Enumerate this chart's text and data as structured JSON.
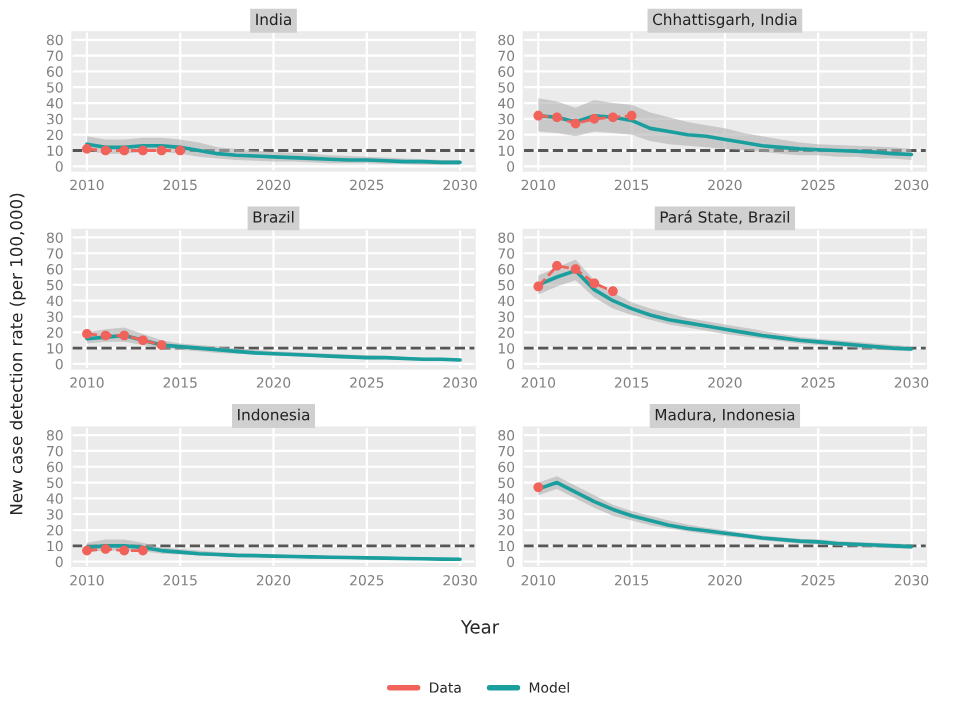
{
  "chart_data": [
    {
      "type": "line",
      "title": "India",
      "legend": "bottom",
      "grid": true,
      "xlim": [
        2009.2,
        2030.8
      ],
      "xticks": [
        2010,
        2015,
        2020,
        2025,
        2030
      ],
      "ylim": [
        -3,
        85
      ],
      "yticks": [
        0,
        10,
        20,
        30,
        40,
        50,
        60,
        70,
        80
      ],
      "ref_lines": [
        {
          "axis": "y",
          "value": 10,
          "color": "#555555",
          "line_style": "dashed"
        }
      ],
      "x": [
        2010,
        2011,
        2012,
        2013,
        2014,
        2015,
        2016,
        2017,
        2018,
        2019,
        2020,
        2021,
        2022,
        2023,
        2024,
        2025,
        2026,
        2027,
        2028,
        2029,
        2030
      ],
      "series": [
        {
          "name": "Data",
          "color": "#f0625a",
          "marker": "circle",
          "line_style": "dashed",
          "x": [
            2010,
            2011,
            2012,
            2013,
            2014,
            2015
          ],
          "values": [
            11,
            10,
            10,
            10,
            10,
            10
          ]
        },
        {
          "name": "Model",
          "color": "#1a9e9e",
          "marker": "none",
          "line_style": "solid",
          "values": [
            14,
            12,
            12,
            13,
            13,
            12,
            10,
            8,
            7,
            6.5,
            6,
            5.5,
            5,
            4.5,
            4,
            4,
            3.5,
            3,
            3,
            2.5,
            2.5
          ],
          "lower": [
            10,
            8,
            8,
            9,
            9,
            8,
            6,
            5,
            4,
            3.5,
            3,
            3,
            2.5,
            2,
            2,
            2,
            1.5,
            1.5,
            1,
            1,
            1
          ],
          "upper": [
            19,
            17,
            17,
            18,
            18,
            17,
            15,
            12,
            11,
            10,
            9,
            8.5,
            8,
            7,
            6.5,
            6,
            5.5,
            5,
            4.5,
            4,
            4
          ]
        }
      ]
    },
    {
      "type": "line",
      "title": "Chhattisgarh, India",
      "grid": true,
      "xlim": [
        2009.2,
        2030.8
      ],
      "xticks": [
        2010,
        2015,
        2020,
        2025,
        2030
      ],
      "ylim": [
        -3,
        85
      ],
      "yticks": [
        0,
        10,
        20,
        30,
        40,
        50,
        60,
        70,
        80
      ],
      "ref_lines": [
        {
          "axis": "y",
          "value": 10,
          "color": "#555555",
          "line_style": "dashed"
        }
      ],
      "x": [
        2010,
        2011,
        2012,
        2013,
        2014,
        2015,
        2016,
        2017,
        2018,
        2019,
        2020,
        2021,
        2022,
        2023,
        2024,
        2025,
        2026,
        2027,
        2028,
        2029,
        2030
      ],
      "series": [
        {
          "color": "#f0625a",
          "marker": "circle",
          "line_style": "dashed",
          "x": [
            2010,
            2011,
            2012,
            2013,
            2014,
            2015
          ],
          "values": [
            32,
            31,
            27,
            30,
            31,
            32
          ]
        },
        {
          "color": "#1a9e9e",
          "marker": "none",
          "line_style": "solid",
          "values": [
            32,
            31,
            28,
            32,
            31,
            29,
            24,
            22,
            20,
            19,
            17,
            15,
            13,
            12,
            11,
            10.5,
            10,
            9.5,
            9,
            8,
            7.5
          ],
          "lower": [
            22,
            21,
            19,
            22,
            21,
            20,
            16,
            14,
            13,
            12,
            11,
            10,
            9,
            8,
            7,
            7,
            6,
            6,
            5,
            5,
            4
          ],
          "upper": [
            43,
            41,
            37,
            42,
            40,
            39,
            34,
            31,
            28,
            26,
            24,
            21,
            19,
            17,
            15,
            14,
            13.5,
            13,
            12.5,
            12,
            11
          ]
        }
      ]
    },
    {
      "type": "line",
      "title": "Brazil",
      "ylabel": "New case detection rate (per 100,000)",
      "grid": true,
      "xlim": [
        2009.2,
        2030.8
      ],
      "xticks": [
        2010,
        2015,
        2020,
        2025,
        2030
      ],
      "ylim": [
        -3,
        85
      ],
      "yticks": [
        0,
        10,
        20,
        30,
        40,
        50,
        60,
        70,
        80
      ],
      "ref_lines": [
        {
          "axis": "y",
          "value": 10,
          "color": "#555555",
          "line_style": "dashed"
        }
      ],
      "x": [
        2010,
        2011,
        2012,
        2013,
        2014,
        2015,
        2016,
        2017,
        2018,
        2019,
        2020,
        2021,
        2022,
        2023,
        2024,
        2025,
        2026,
        2027,
        2028,
        2029,
        2030
      ],
      "series": [
        {
          "color": "#f0625a",
          "marker": "circle",
          "line_style": "dashed",
          "x": [
            2010,
            2011,
            2012,
            2013,
            2014
          ],
          "values": [
            19,
            18,
            18,
            15,
            12
          ]
        },
        {
          "color": "#1a9e9e",
          "marker": "none",
          "line_style": "solid",
          "values": [
            16,
            17,
            18,
            15,
            12,
            11,
            10,
            9,
            8,
            7,
            6.5,
            6,
            5.5,
            5,
            4.5,
            4,
            4,
            3.5,
            3,
            3,
            2.5
          ],
          "lower": [
            13,
            14,
            14,
            12,
            10,
            9,
            8,
            7,
            6.5,
            6,
            5.5,
            5,
            4.5,
            4,
            3.5,
            3,
            3,
            2.5,
            2.5,
            2,
            2
          ],
          "upper": [
            20,
            22,
            23,
            19,
            15,
            13,
            12,
            11,
            10,
            9,
            8,
            7.5,
            7,
            6.5,
            6,
            5.5,
            5,
            4.5,
            4,
            3.5,
            3
          ]
        }
      ]
    },
    {
      "type": "line",
      "title": "Pará State, Brazil",
      "grid": true,
      "xlim": [
        2009.2,
        2030.8
      ],
      "xticks": [
        2010,
        2015,
        2020,
        2025,
        2030
      ],
      "ylim": [
        -3,
        85
      ],
      "yticks": [
        0,
        10,
        20,
        30,
        40,
        50,
        60,
        70,
        80
      ],
      "ref_lines": [
        {
          "axis": "y",
          "value": 10,
          "color": "#555555",
          "line_style": "dashed"
        }
      ],
      "x": [
        2010,
        2011,
        2012,
        2013,
        2014,
        2015,
        2016,
        2017,
        2018,
        2019,
        2020,
        2021,
        2022,
        2023,
        2024,
        2025,
        2026,
        2027,
        2028,
        2029,
        2030
      ],
      "series": [
        {
          "color": "#f0625a",
          "marker": "circle",
          "line_style": "dashed",
          "x": [
            2010,
            2011,
            2012,
            2013,
            2014
          ],
          "values": [
            49,
            62,
            60,
            51,
            46
          ]
        },
        {
          "color": "#1a9e9e",
          "marker": "none",
          "line_style": "solid",
          "values": [
            50,
            55,
            59,
            47,
            40,
            35,
            31,
            28,
            26,
            24,
            22,
            20,
            18,
            16.5,
            15,
            14,
            13,
            12,
            11,
            10,
            9.5
          ],
          "lower": [
            44,
            49,
            53,
            42,
            35,
            31,
            28,
            25,
            23,
            21,
            19,
            17.5,
            16,
            14.5,
            13,
            12,
            11,
            10,
            9,
            8.5,
            8
          ],
          "upper": [
            56,
            61,
            66,
            53,
            45,
            39,
            35,
            32,
            29,
            27,
            25,
            23,
            21,
            19,
            17,
            16,
            15,
            14,
            13,
            12,
            11
          ]
        }
      ]
    },
    {
      "type": "line",
      "title": "Indonesia",
      "grid": true,
      "xlim": [
        2009.2,
        2030.8
      ],
      "xticks": [
        2010,
        2015,
        2020,
        2025,
        2030
      ],
      "ylim": [
        -3,
        85
      ],
      "yticks": [
        0,
        10,
        20,
        30,
        40,
        50,
        60,
        70,
        80
      ],
      "ref_lines": [
        {
          "axis": "y",
          "value": 10,
          "color": "#555555",
          "line_style": "dashed"
        }
      ],
      "x": [
        2010,
        2011,
        2012,
        2013,
        2014,
        2015,
        2016,
        2017,
        2018,
        2019,
        2020,
        2021,
        2022,
        2023,
        2024,
        2025,
        2026,
        2027,
        2028,
        2029,
        2030
      ],
      "series": [
        {
          "color": "#f0625a",
          "marker": "circle",
          "line_style": "dashed",
          "x": [
            2010,
            2011,
            2012,
            2013
          ],
          "values": [
            7,
            8,
            7,
            7
          ]
        },
        {
          "color": "#1a9e9e",
          "marker": "none",
          "line_style": "solid",
          "values": [
            9,
            10,
            10,
            9,
            7,
            6,
            5,
            4.5,
            4,
            3.8,
            3.5,
            3.3,
            3,
            2.8,
            2.6,
            2.4,
            2.2,
            2,
            1.8,
            1.6,
            1.5
          ],
          "lower": [
            6,
            7,
            7,
            6.5,
            5,
            4.5,
            4,
            3.5,
            3,
            3,
            2.5,
            2.5,
            2,
            2,
            2,
            1.5,
            1.5,
            1.5,
            1,
            1,
            1
          ],
          "upper": [
            12,
            14,
            14,
            12,
            9,
            8,
            7,
            6,
            5.5,
            5,
            4.5,
            4.3,
            4,
            3.8,
            3.5,
            3.2,
            3,
            2.8,
            2.5,
            2.3,
            2.1
          ]
        }
      ]
    },
    {
      "type": "line",
      "title": "Madura, Indonesia",
      "xlabel": "Year",
      "grid": true,
      "xlim": [
        2009.2,
        2030.8
      ],
      "xticks": [
        2010,
        2015,
        2020,
        2025,
        2030
      ],
      "ylim": [
        -3,
        85
      ],
      "yticks": [
        0,
        10,
        20,
        30,
        40,
        50,
        60,
        70,
        80
      ],
      "ref_lines": [
        {
          "axis": "y",
          "value": 10,
          "color": "#555555",
          "line_style": "dashed"
        }
      ],
      "x": [
        2010,
        2011,
        2012,
        2013,
        2014,
        2015,
        2016,
        2017,
        2018,
        2019,
        2020,
        2021,
        2022,
        2023,
        2024,
        2025,
        2026,
        2027,
        2028,
        2029,
        2030
      ],
      "series": [
        {
          "color": "#f0625a",
          "marker": "circle",
          "line_style": "dashed",
          "x": [
            2010
          ],
          "values": [
            47
          ]
        },
        {
          "color": "#1a9e9e",
          "marker": "none",
          "line_style": "solid",
          "values": [
            46,
            50,
            44,
            38,
            33,
            29,
            26,
            23,
            21,
            19.5,
            18,
            16.5,
            15,
            14,
            13,
            12.5,
            11.5,
            11,
            10.5,
            10,
            9.5
          ],
          "lower": [
            42,
            46,
            40,
            34,
            29,
            26,
            23,
            21,
            19,
            17.5,
            16,
            15,
            13.5,
            12.5,
            11.5,
            11,
            10,
            9.5,
            9,
            8.5,
            8
          ],
          "upper": [
            50,
            54,
            48,
            42,
            36,
            32,
            29,
            26,
            23.5,
            21.5,
            20,
            18,
            16.5,
            15.5,
            14.5,
            14,
            13,
            12.5,
            12,
            11.5,
            11
          ]
        }
      ]
    }
  ]
}
